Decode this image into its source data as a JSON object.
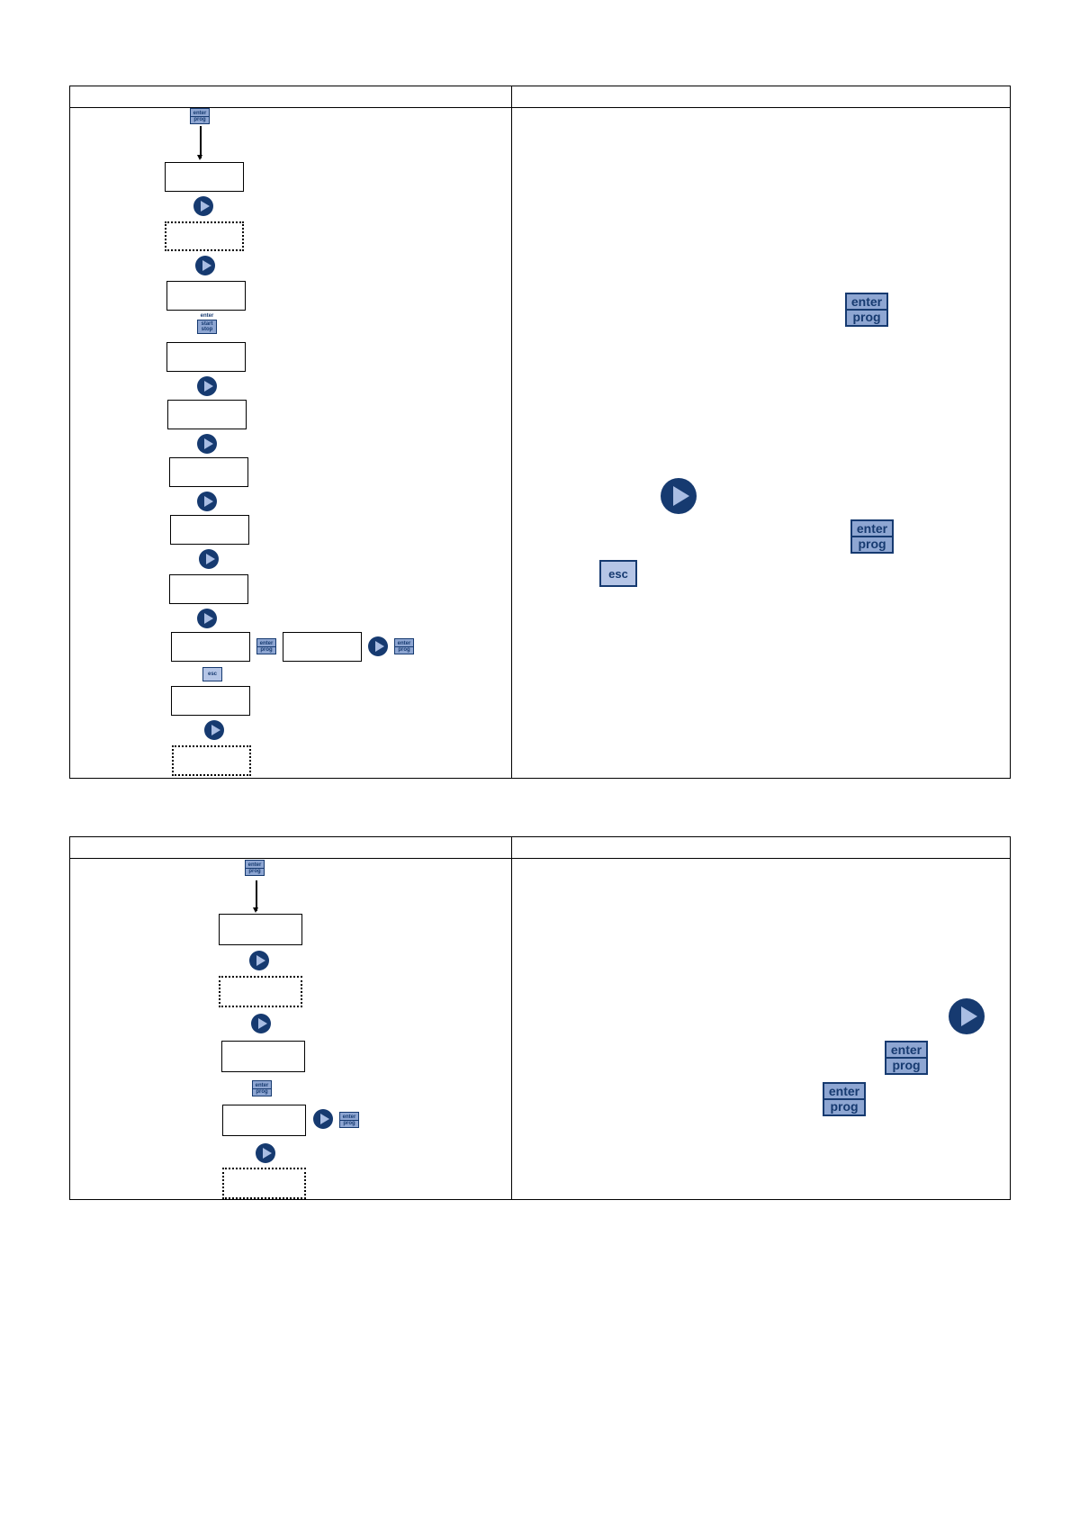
{
  "keys": {
    "enter": "enter",
    "prog": "prog",
    "start": "start",
    "stop": "stop",
    "esc": "esc"
  },
  "table1": {
    "col_left_header": "",
    "col_right_header": "",
    "displays": [
      "",
      "",
      "",
      "",
      "",
      "",
      "",
      "",
      "",
      "",
      "",
      ""
    ]
  },
  "table2": {
    "col_left_header": "",
    "col_right_header": "",
    "displays": [
      "",
      "",
      "",
      "",
      ""
    ]
  },
  "colors": {
    "key_dark": "#163a70",
    "key_fill": "#8ea6d2",
    "play_fill": "#163a70"
  }
}
